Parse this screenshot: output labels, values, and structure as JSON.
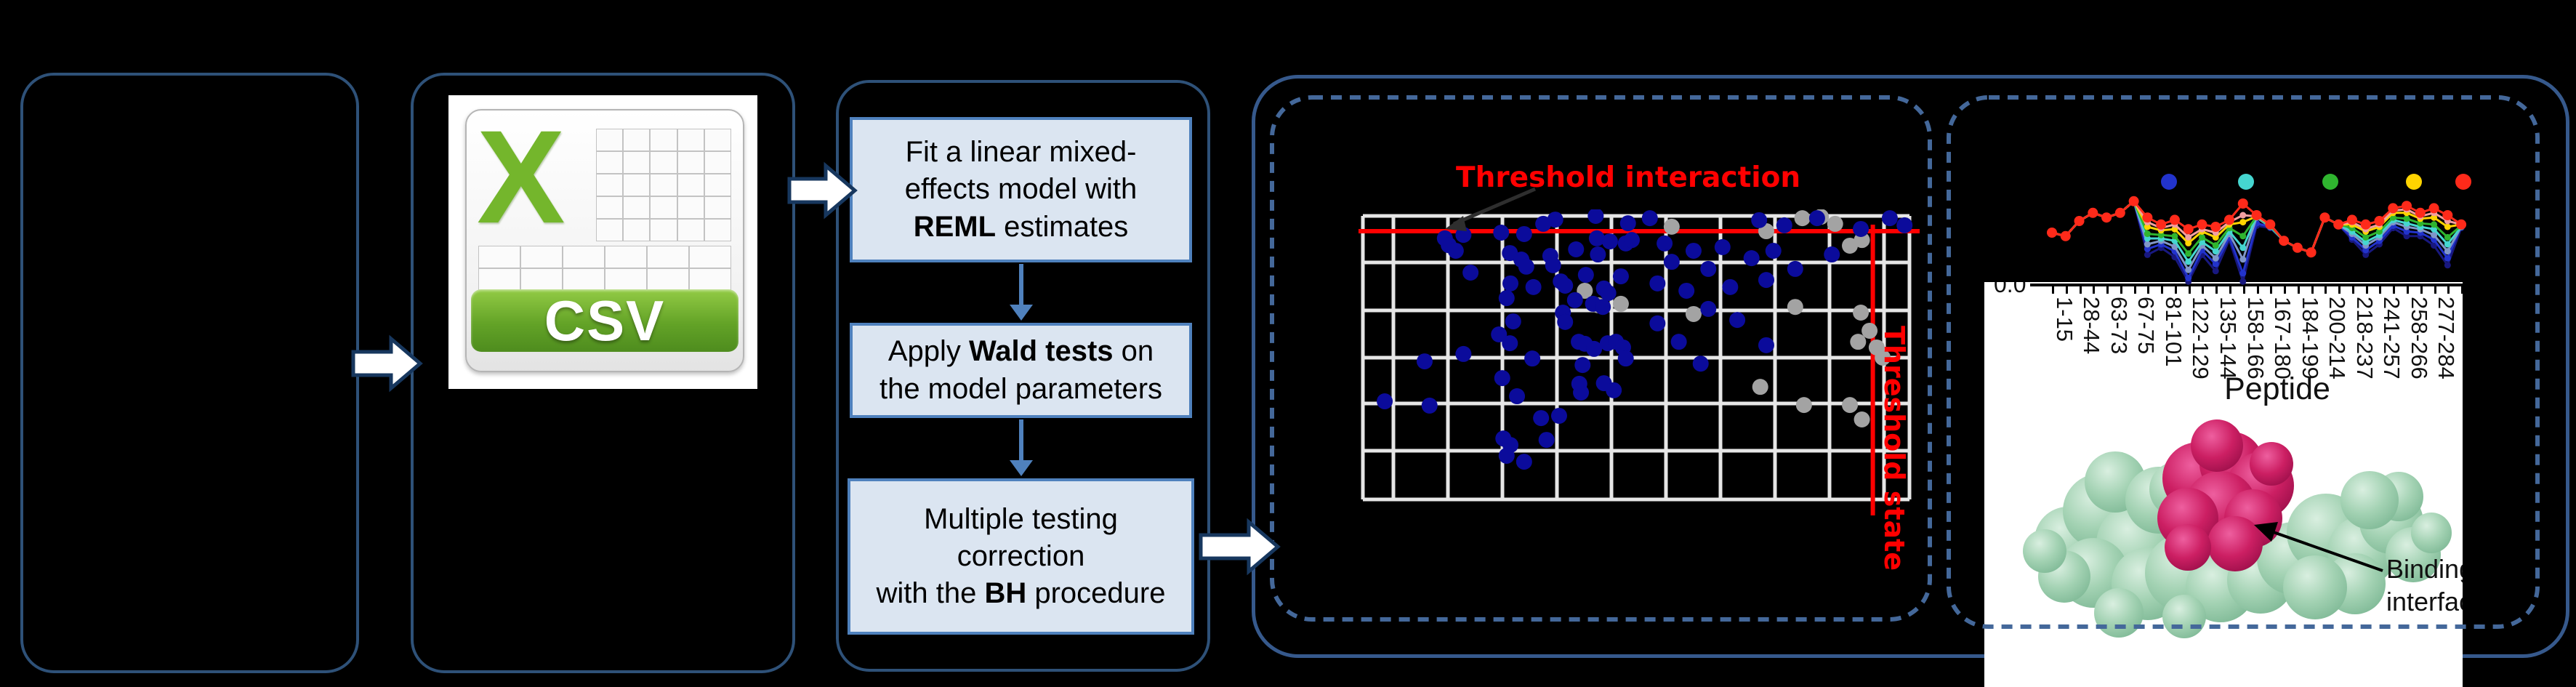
{
  "labels": {
    "threshold_interaction": "Threshold interaction",
    "threshold_state": "Threshold state",
    "binding_interface": "Binding\ninterface",
    "peptide_axis_title": "Peptide",
    "y_zero_tick": "0.0"
  },
  "csv_icon": {
    "letter": "X",
    "label": "CSV"
  },
  "flow": {
    "steps": [
      {
        "lines": [
          [
            {
              "t": "Fit a linear mixed-"
            }
          ],
          [
            {
              "t": "effects model with"
            }
          ],
          [
            {
              "t": "REML",
              "b": true
            },
            {
              "t": " estimates"
            }
          ]
        ]
      },
      {
        "lines": [
          [
            {
              "t": "Apply "
            },
            {
              "t": "Wald tests",
              "b": true
            },
            {
              "t": " on"
            }
          ],
          [
            {
              "t": "the model parameters"
            }
          ]
        ]
      },
      {
        "lines": [
          [
            {
              "t": "Multiple testing"
            }
          ],
          [
            {
              "t": "correction"
            }
          ],
          [
            {
              "t": "with the "
            },
            {
              "t": "BH",
              "b": true
            },
            {
              "t": " procedure"
            }
          ]
        ]
      }
    ]
  },
  "chart_data": [
    {
      "type": "scatter",
      "title": "Threshold interaction",
      "xlabel": "",
      "ylabel": "",
      "grid": true,
      "annotations": [
        "Threshold interaction",
        "Threshold state"
      ],
      "threshold_interaction_y": 0.054,
      "threshold_state_x": 0.933,
      "point_color_blue": "#0b0b9b",
      "point_color_gray": "#a3a3a3",
      "blue_points": [
        [
          0.352,
          0.013
        ],
        [
          0.426,
          0.0
        ],
        [
          0.485,
          0.026
        ],
        [
          0.33,
          0.028
        ],
        [
          0.253,
          0.059
        ],
        [
          0.295,
          0.064
        ],
        [
          0.15,
          0.079
        ],
        [
          0.157,
          0.103
        ],
        [
          0.184,
          0.067
        ],
        [
          0.17,
          0.123
        ],
        [
          0.269,
          0.131
        ],
        [
          0.29,
          0.154
        ],
        [
          0.299,
          0.179
        ],
        [
          0.343,
          0.141
        ],
        [
          0.348,
          0.174
        ],
        [
          0.428,
          0.079
        ],
        [
          0.452,
          0.09
        ],
        [
          0.481,
          0.097
        ],
        [
          0.39,
          0.118
        ],
        [
          0.43,
          0.136
        ],
        [
          0.197,
          0.2
        ],
        [
          0.27,
          0.238
        ],
        [
          0.312,
          0.251
        ],
        [
          0.263,
          0.29
        ],
        [
          0.362,
          0.231
        ],
        [
          0.37,
          0.246
        ],
        [
          0.388,
          0.297
        ],
        [
          0.408,
          0.208
        ],
        [
          0.441,
          0.256
        ],
        [
          0.449,
          0.272
        ],
        [
          0.421,
          0.31
        ],
        [
          0.439,
          0.321
        ],
        [
          0.366,
          0.341
        ],
        [
          0.37,
          0.374
        ],
        [
          0.275,
          0.372
        ],
        [
          0.249,
          0.418
        ],
        [
          0.269,
          0.449
        ],
        [
          0.184,
          0.487
        ],
        [
          0.31,
          0.503
        ],
        [
          0.395,
          0.444
        ],
        [
          0.406,
          0.451
        ],
        [
          0.423,
          0.469
        ],
        [
          0.448,
          0.449
        ],
        [
          0.463,
          0.444
        ],
        [
          0.476,
          0.464
        ],
        [
          0.481,
          0.503
        ],
        [
          0.402,
          0.526
        ],
        [
          0.113,
          0.513
        ],
        [
          0.255,
          0.572
        ],
        [
          0.282,
          0.636
        ],
        [
          0.396,
          0.592
        ],
        [
          0.399,
          0.623
        ],
        [
          0.441,
          0.59
        ],
        [
          0.459,
          0.615
        ],
        [
          0.04,
          0.654
        ],
        [
          0.122,
          0.669
        ],
        [
          0.326,
          0.713
        ],
        [
          0.359,
          0.705
        ],
        [
          0.257,
          0.785
        ],
        [
          0.27,
          0.808
        ],
        [
          0.336,
          0.79
        ],
        [
          0.263,
          0.846
        ],
        [
          0.295,
          0.867
        ],
        [
          0.525,
          0.008
        ],
        [
          0.725,
          0.015
        ],
        [
          0.771,
          0.033
        ],
        [
          0.831,
          0.008
        ],
        [
          0.911,
          0.046
        ],
        [
          0.964,
          0.008
        ],
        [
          0.991,
          0.033
        ],
        [
          0.492,
          0.085
        ],
        [
          0.552,
          0.097
        ],
        [
          0.605,
          0.123
        ],
        [
          0.565,
          0.162
        ],
        [
          0.632,
          0.187
        ],
        [
          0.658,
          0.11
        ],
        [
          0.711,
          0.149
        ],
        [
          0.751,
          0.123
        ],
        [
          0.791,
          0.187
        ],
        [
          0.858,
          0.136
        ],
        [
          0.472,
          0.213
        ],
        [
          0.539,
          0.238
        ],
        [
          0.592,
          0.264
        ],
        [
          0.672,
          0.251
        ],
        [
          0.738,
          0.226
        ],
        [
          0.632,
          0.328
        ],
        [
          0.685,
          0.367
        ],
        [
          0.539,
          0.379
        ],
        [
          0.578,
          0.444
        ],
        [
          0.738,
          0.456
        ],
        [
          0.618,
          0.521
        ]
      ],
      "gray_points": [
        [
          0.804,
          0.008
        ],
        [
          0.838,
          0.003
        ],
        [
          0.864,
          0.028
        ],
        [
          0.891,
          0.105
        ],
        [
          0.913,
          0.085
        ],
        [
          0.738,
          0.054
        ],
        [
          0.565,
          0.038
        ],
        [
          0.406,
          0.264
        ],
        [
          0.43,
          0.315
        ],
        [
          0.472,
          0.31
        ],
        [
          0.605,
          0.346
        ],
        [
          0.791,
          0.321
        ],
        [
          0.911,
          0.341
        ],
        [
          0.927,
          0.405
        ],
        [
          0.94,
          0.464
        ],
        [
          0.906,
          0.444
        ],
        [
          0.951,
          0.5
        ],
        [
          0.891,
          0.667
        ],
        [
          0.913,
          0.718
        ],
        [
          0.807,
          0.667
        ],
        [
          0.727,
          0.603
        ]
      ]
    },
    {
      "type": "line",
      "title": "",
      "xlabel": "Peptide",
      "y_tick_label": "0.0",
      "legend_position": "top",
      "legend_dot_colors": [
        "#2233cc",
        "#45d6d0",
        "#2fb52f",
        "#ffd400",
        "#ff2a1a"
      ],
      "categories": [
        "1-15",
        "28-44",
        "63-73",
        "67-75",
        "81-101",
        "122-129",
        "135-144",
        "158-166",
        "167-180",
        "184-199",
        "200-214",
        "218-237",
        "241-257",
        "258-266",
        "277-284"
      ],
      "series": [
        {
          "name": "navy",
          "color": "#18187f",
          "marker": 4.5,
          "values": [
            0.45,
            0.42,
            0.55,
            0.62,
            0.58,
            0.62,
            0.72,
            0.26,
            0.32,
            0.24,
            0.03,
            0.26,
            0.12,
            0.39,
            0.03,
            0.51,
            0.49,
            0.38,
            0.32,
            0.28,
            0.58,
            0.52,
            0.39,
            0.26,
            0.35,
            0.49,
            0.42,
            0.42,
            0.34,
            0.17,
            0.49
          ]
        },
        {
          "name": "blue",
          "color": "#2233cc",
          "marker": 4.5,
          "values": [
            0.45,
            0.42,
            0.55,
            0.62,
            0.58,
            0.62,
            0.72,
            0.31,
            0.35,
            0.29,
            0.06,
            0.3,
            0.18,
            0.41,
            0.1,
            0.53,
            0.5,
            0.38,
            0.32,
            0.28,
            0.58,
            0.52,
            0.41,
            0.3,
            0.38,
            0.51,
            0.46,
            0.45,
            0.39,
            0.23,
            0.51
          ]
        },
        {
          "name": "steel",
          "color": "#8096c8",
          "marker": 4.5,
          "values": [
            0.45,
            0.42,
            0.55,
            0.62,
            0.58,
            0.62,
            0.72,
            0.35,
            0.38,
            0.33,
            0.13,
            0.34,
            0.23,
            0.44,
            0.22,
            0.58,
            0.5,
            0.38,
            0.32,
            0.28,
            0.58,
            0.52,
            0.44,
            0.34,
            0.41,
            0.54,
            0.5,
            0.48,
            0.43,
            0.29,
            0.5
          ]
        },
        {
          "name": "cyan",
          "color": "#45d6d0",
          "marker": 4.5,
          "values": [
            0.45,
            0.42,
            0.55,
            0.62,
            0.58,
            0.62,
            0.72,
            0.4,
            0.4,
            0.38,
            0.2,
            0.37,
            0.29,
            0.46,
            0.32,
            0.59,
            0.5,
            0.38,
            0.32,
            0.28,
            0.58,
            0.52,
            0.46,
            0.37,
            0.43,
            0.56,
            0.53,
            0.5,
            0.48,
            0.35,
            0.5
          ]
        },
        {
          "name": "green",
          "color": "#2fb52f",
          "marker": 4.5,
          "values": [
            0.45,
            0.42,
            0.55,
            0.62,
            0.58,
            0.62,
            0.72,
            0.44,
            0.43,
            0.42,
            0.27,
            0.41,
            0.34,
            0.49,
            0.42,
            0.59,
            0.51,
            0.38,
            0.32,
            0.28,
            0.58,
            0.52,
            0.49,
            0.41,
            0.46,
            0.58,
            0.57,
            0.53,
            0.52,
            0.41,
            0.51
          ]
        },
        {
          "name": "yellow",
          "color": "#ffd400",
          "marker": 4.5,
          "values": [
            0.45,
            0.42,
            0.55,
            0.62,
            0.58,
            0.62,
            0.72,
            0.5,
            0.47,
            0.48,
            0.36,
            0.46,
            0.41,
            0.52,
            0.54,
            0.59,
            0.52,
            0.38,
            0.32,
            0.28,
            0.58,
            0.52,
            0.52,
            0.46,
            0.5,
            0.62,
            0.62,
            0.57,
            0.58,
            0.5,
            0.52
          ]
        },
        {
          "name": "pink",
          "color": "#f2a0a0",
          "marker": 4.5,
          "values": [
            0.45,
            0.42,
            0.55,
            0.62,
            0.58,
            0.62,
            0.72,
            0.54,
            0.49,
            0.52,
            0.41,
            0.48,
            0.45,
            0.54,
            0.6,
            0.59,
            0.52,
            0.38,
            0.32,
            0.28,
            0.58,
            0.52,
            0.54,
            0.48,
            0.52,
            0.64,
            0.65,
            0.59,
            0.62,
            0.55,
            0.52
          ]
        },
        {
          "name": "red",
          "color": "#ff2a1a",
          "marker": 7,
          "values": [
            0.45,
            0.42,
            0.55,
            0.62,
            0.58,
            0.62,
            0.72,
            0.58,
            0.52,
            0.56,
            0.48,
            0.52,
            0.5,
            0.56,
            0.7,
            0.6,
            0.52,
            0.38,
            0.32,
            0.28,
            0.58,
            0.52,
            0.56,
            0.52,
            0.55,
            0.66,
            0.68,
            0.62,
            0.66,
            0.6,
            0.52
          ]
        }
      ]
    }
  ]
}
